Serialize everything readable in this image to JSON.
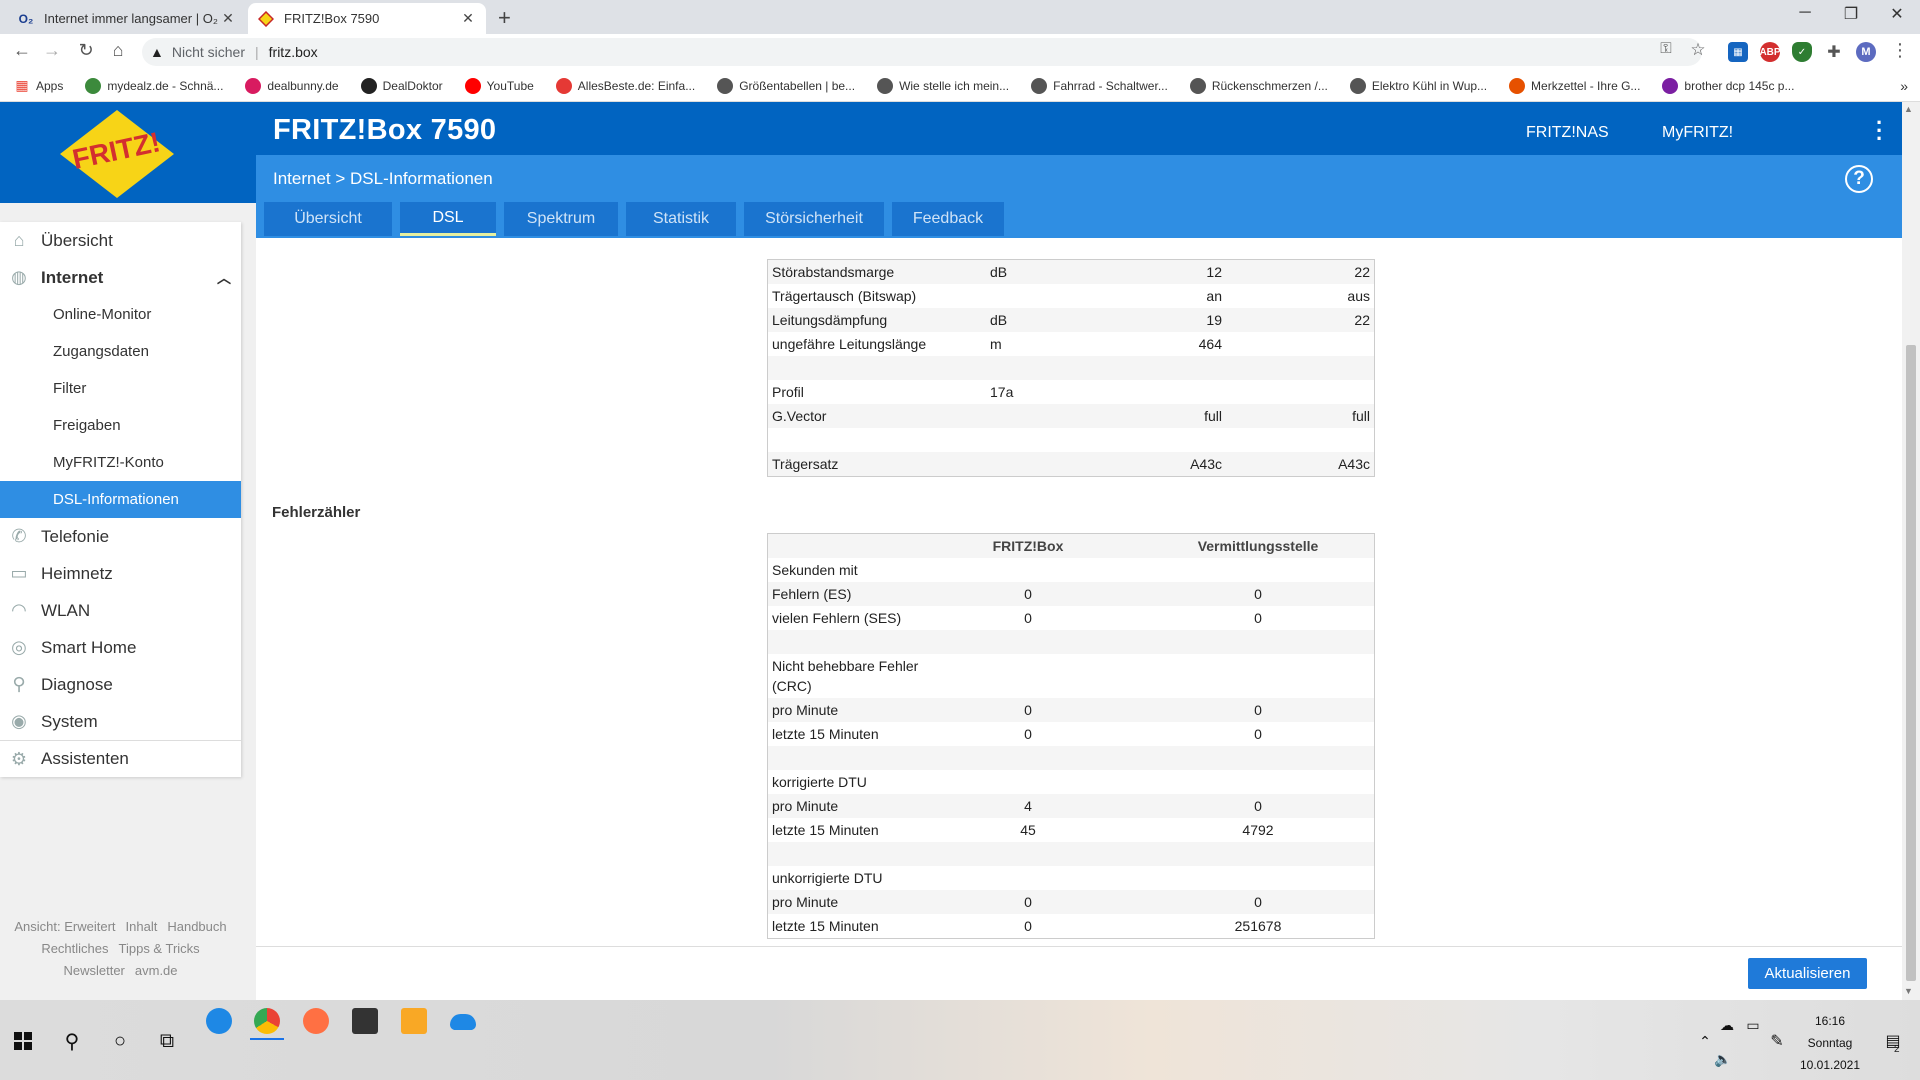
{
  "browser": {
    "tabs": [
      {
        "title": "Internet immer langsamer | O₂ C",
        "favicon": "O₂"
      },
      {
        "title": "FRITZ!Box 7590",
        "favicon": "fritz"
      }
    ],
    "security_label": "Nicht sicher",
    "url": "fritz.box",
    "bookmarks": [
      {
        "label": "Apps",
        "color": "#ea4335"
      },
      {
        "label": "mydealz.de - Schnä...",
        "color": "#3c8a3c"
      },
      {
        "label": "dealbunny.de",
        "color": "#d81b60"
      },
      {
        "label": "DealDoktor",
        "color": "#222222"
      },
      {
        "label": "YouTube",
        "color": "#ff0000"
      },
      {
        "label": "AllesBeste.de: Einfa...",
        "color": "#e53935"
      },
      {
        "label": "Größentabellen | be...",
        "color": "#555555"
      },
      {
        "label": "Wie stelle ich mein...",
        "color": "#555555"
      },
      {
        "label": "Fahrrad - Schaltwer...",
        "color": "#555555"
      },
      {
        "label": "Rückenschmerzen /...",
        "color": "#555555"
      },
      {
        "label": "Elektro Kühl in Wup...",
        "color": "#555555"
      },
      {
        "label": "Merkzettel - Ihre G...",
        "color": "#e65100"
      },
      {
        "label": "brother dcp 145c p...",
        "color": "#7b1fa2"
      }
    ],
    "profile_initial": "M"
  },
  "header": {
    "product": "FRITZ!Box 7590",
    "links": [
      "FRITZ!NAS",
      "MyFRITZ!"
    ],
    "breadcrumb": "Internet > DSL-Informationen",
    "help": "?"
  },
  "tabs": [
    {
      "label": "Übersicht",
      "active": false,
      "width": 128
    },
    {
      "label": "DSL",
      "active": true,
      "width": 96
    },
    {
      "label": "Spektrum",
      "active": false,
      "width": 114
    },
    {
      "label": "Statistik",
      "active": false,
      "width": 110
    },
    {
      "label": "Störsicherheit",
      "active": false,
      "width": 140
    },
    {
      "label": "Feedback",
      "active": false,
      "width": 112
    }
  ],
  "sidebar": {
    "items": [
      {
        "label": "Übersicht",
        "icon": "home-icon",
        "glyph": "⌂"
      },
      {
        "label": "Internet",
        "icon": "globe-icon",
        "glyph": "◍",
        "open": true
      }
    ],
    "sub_items": [
      "Online-Monitor",
      "Zugangsdaten",
      "Filter",
      "Freigaben",
      "MyFRITZ!-Konto",
      "DSL-Informationen"
    ],
    "items_after": [
      {
        "label": "Telefonie",
        "icon": "phone-icon",
        "glyph": "✆"
      },
      {
        "label": "Heimnetz",
        "icon": "network-icon",
        "glyph": "▭"
      },
      {
        "label": "WLAN",
        "icon": "wifi-icon",
        "glyph": "◠"
      },
      {
        "label": "Smart Home",
        "icon": "smarthome-icon",
        "glyph": "◎"
      },
      {
        "label": "Diagnose",
        "icon": "diagnose-icon",
        "glyph": "⚲"
      },
      {
        "label": "System",
        "icon": "system-icon",
        "glyph": "◉"
      },
      {
        "label": "Assistenten",
        "icon": "assistant-icon",
        "glyph": "⚙"
      }
    ],
    "footer": [
      "Ansicht: Erweitert",
      "Inhalt",
      "Handbuch",
      "Rechtliches",
      "Tipps & Tricks",
      "Newsletter",
      "avm.de"
    ]
  },
  "dsl_table": {
    "rows": [
      {
        "label": "Störabstandsmarge",
        "unit": "dB",
        "a": "12",
        "b": "22"
      },
      {
        "label": "Trägertausch (Bitswap)",
        "unit": "",
        "a": "an",
        "b": "aus"
      },
      {
        "label": "Leitungsdämpfung",
        "unit": "dB",
        "a": "19",
        "b": "22"
      },
      {
        "label": "ungefähre Leitungslänge",
        "unit": "m",
        "a": "464",
        "b": ""
      },
      {
        "label": "",
        "unit": "",
        "a": "",
        "b": ""
      },
      {
        "label": "Profil",
        "unit": "17a",
        "a": "",
        "b": ""
      },
      {
        "label": "G.Vector",
        "unit": "",
        "a": "full",
        "b": "full"
      },
      {
        "label": "",
        "unit": "",
        "a": "",
        "b": ""
      },
      {
        "label": "Trägersatz",
        "unit": "",
        "a": "A43c",
        "b": "A43c"
      }
    ]
  },
  "error_section": {
    "title": "Fehlerzähler",
    "col_fritzbox": "FRITZ!Box",
    "col_exchange": "Vermittlungsstelle",
    "rows": [
      {
        "label": "Sekunden mit",
        "a": "",
        "b": ""
      },
      {
        "label": "Fehlern (ES)",
        "a": "0",
        "b": "0"
      },
      {
        "label": "vielen Fehlern (SES)",
        "a": "0",
        "b": "0"
      },
      {
        "label": "",
        "a": "",
        "b": ""
      },
      {
        "label": "Nicht behebbare Fehler (CRC)",
        "a": "",
        "b": "",
        "tall": true
      },
      {
        "label": "pro Minute",
        "a": "0",
        "b": "0"
      },
      {
        "label": "letzte 15 Minuten",
        "a": "0",
        "b": "0"
      },
      {
        "label": "",
        "a": "",
        "b": ""
      },
      {
        "label": "korrigierte DTU",
        "a": "",
        "b": ""
      },
      {
        "label": "pro Minute",
        "a": "4",
        "b": "0"
      },
      {
        "label": "letzte 15 Minuten",
        "a": "45",
        "b": "4792"
      },
      {
        "label": "",
        "a": "",
        "b": ""
      },
      {
        "label": "unkorrigierte DTU",
        "a": "",
        "b": ""
      },
      {
        "label": "pro Minute",
        "a": "0",
        "b": "0"
      },
      {
        "label": "letzte 15 Minuten",
        "a": "0",
        "b": "251678"
      }
    ]
  },
  "refresh_button": "Aktualisieren",
  "taskbar": {
    "time": "16:16",
    "day": "Sonntag",
    "date": "10.01.2021",
    "notification_count": "2"
  }
}
